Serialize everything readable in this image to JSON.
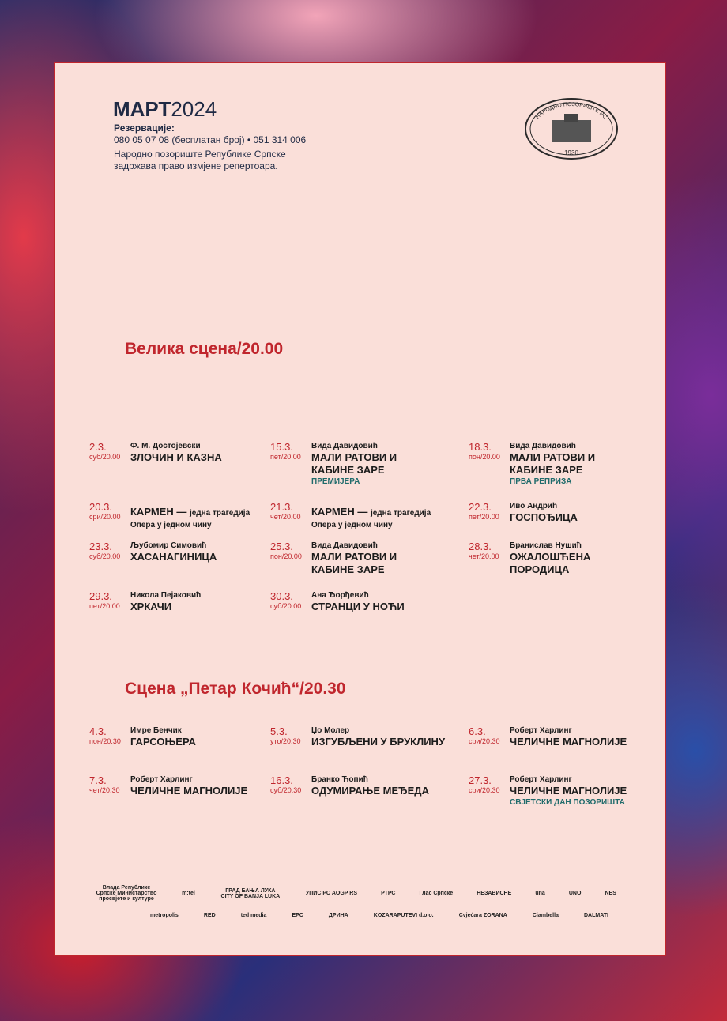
{
  "header": {
    "month": "МАРТ",
    "year": "2024",
    "reservations_label": "Резервације:",
    "phones": "080 05 07 08 (бесплатан број) • 051 314 006",
    "note_line1": "Народно позориште Републике Српске",
    "note_line2": "задржава право измјене репертоара."
  },
  "logo": {
    "name": "НАРОДНО ПОЗОРИШТЕ РС",
    "year": "1930"
  },
  "sections": [
    {
      "title": "Велика сцена/20.00",
      "events": [
        {
          "date": "2.3.",
          "day_time": "суб/20.00",
          "author": "Ф. М. Достојевски",
          "title": "ЗЛОЧИН И КАЗНА"
        },
        {
          "date": "15.3.",
          "day_time": "пет/20.00",
          "author": "Вида Давидовић",
          "title": "МАЛИ РАТОВИ И КАБИНЕ ЗАРЕ",
          "note": "ПРЕМИЈЕРА"
        },
        {
          "date": "18.3.",
          "day_time": "пон/20.00",
          "author": "Вида Давидовић",
          "title": "МАЛИ РАТОВИ И КАБИНЕ ЗАРЕ",
          "note": "ПРВА РЕПРИЗА"
        },
        {
          "date": "20.3.",
          "day_time": "сри/20.00",
          "title": "КАРМЕН —",
          "title_suffix": "једна трагедија",
          "genre": "Опера у једном чину"
        },
        {
          "date": "21.3.",
          "day_time": "чет/20.00",
          "title": "КАРМЕН —",
          "title_suffix": "једна трагедија",
          "genre": "Опера у једном чину"
        },
        {
          "date": "22.3.",
          "day_time": "пет/20.00",
          "author": "Иво Андрић",
          "title": "ГОСПОЂИЦА"
        },
        {
          "date": "23.3.",
          "day_time": "суб/20.00",
          "author": "Љубомир Симовић",
          "title": "ХАСАНАГИНИЦА"
        },
        {
          "date": "25.3.",
          "day_time": "пон/20.00",
          "author": "Вида Давидовић",
          "title": "МАЛИ РАТОВИ И КАБИНЕ ЗАРЕ"
        },
        {
          "date": "28.3.",
          "day_time": "чет/20.00",
          "author": "Бранислав Нушић",
          "title": "ОЖАЛОШЋЕНА ПОРОДИЦА"
        },
        {
          "date": "29.3.",
          "day_time": "пет/20.00",
          "author": "Никола Пејаковић",
          "title": "ХРКАЧИ"
        },
        {
          "date": "30.3.",
          "day_time": "суб/20.00",
          "author": "Ана Ђорђевић",
          "title": "СТРАНЦИ У НОЋИ"
        }
      ]
    },
    {
      "title": "Сцена „Петар Кочић“/20.30",
      "events": [
        {
          "date": "4.3.",
          "day_time": "пон/20.30",
          "author": "Имре Бенчик",
          "title": "ГАРСОЊЕРА"
        },
        {
          "date": "5.3.",
          "day_time": "уто/20.30",
          "author": "Џо Молер",
          "title": "ИЗГУБЉЕНИ У БРУКЛИНУ"
        },
        {
          "date": "6.3.",
          "day_time": "сри/20.30",
          "author": "Роберт Харлинг",
          "title": "ЧЕЛИЧНЕ МАГНОЛИЈЕ"
        },
        {
          "date": "7.3.",
          "day_time": "чет/20.30",
          "author": "Роберт Харлинг",
          "title": "ЧЕЛИЧНЕ МАГНОЛИЈЕ"
        },
        {
          "date": "16.3.",
          "day_time": "суб/20.30",
          "author": "Бранко Ћопић",
          "title": "ОДУМИРАЊЕ МЕЂЕДА"
        },
        {
          "date": "27.3.",
          "day_time": "сри/20.30",
          "author": "Роберт Харлинг",
          "title": "ЧЕЛИЧНЕ МАГНОЛИЈЕ",
          "note": "СВЈЕТСКИ ДАН ПОЗОРИШТА"
        }
      ]
    }
  ],
  "sponsors": [
    [
      "Влада Републике Српске Министарство просвјете и културе",
      "m:tel",
      "ГРАД БАЊА ЛУКА CITY OF BANJA LUKA",
      "УПИС РС AOGP RS",
      "РТРС",
      "Глас Српске",
      "НЕЗАВИСНЕ",
      "una",
      "UNO",
      "NES"
    ],
    [
      "metropolis",
      "RED",
      "ted media",
      "EPC",
      "ДРИНА",
      "KOZARAPUTEVI d.o.o.",
      "Cvjećara ZORANA",
      "Ciambella",
      "DALMATI"
    ]
  ]
}
